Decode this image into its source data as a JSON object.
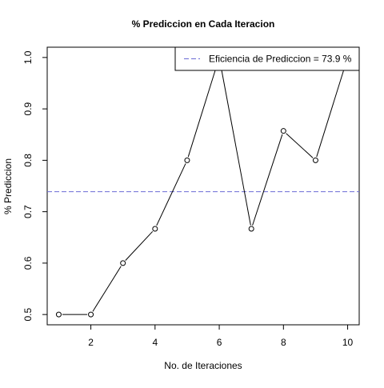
{
  "chart_data": {
    "type": "line",
    "title": "% Prediccion en Cada Iteracion",
    "xlabel": "No. de Iteraciones",
    "ylabel": "% Prediccion",
    "x": [
      1,
      2,
      3,
      4,
      5,
      6,
      7,
      8,
      9,
      10
    ],
    "y": [
      0.5,
      0.5,
      0.6,
      0.6667,
      0.8,
      1.0,
      0.6667,
      0.8571,
      0.8,
      1.0
    ],
    "xlim": [
      0.64,
      10.36
    ],
    "ylim": [
      0.48,
      1.02
    ],
    "x_ticks": [
      2,
      4,
      6,
      8,
      10
    ],
    "x_tick_labels": [
      "2",
      "4",
      "6",
      "8",
      "10"
    ],
    "y_ticks": [
      0.5,
      0.6,
      0.7,
      0.8,
      0.9,
      1.0
    ],
    "y_tick_labels": [
      "0.5",
      "0.6",
      "0.7",
      "0.8",
      "0.9",
      "1.0"
    ],
    "grid": false,
    "marker": "open-circle",
    "line_color": "#000000",
    "reference_line": {
      "y": 0.739,
      "color": "#6b6bd6",
      "style": "dashed",
      "label": "Eficiencia de Prediccion = 73.9 %"
    },
    "legend": {
      "placement": "top-right",
      "entries": [
        "Eficiencia de Prediccion = 73.9 %"
      ]
    }
  }
}
